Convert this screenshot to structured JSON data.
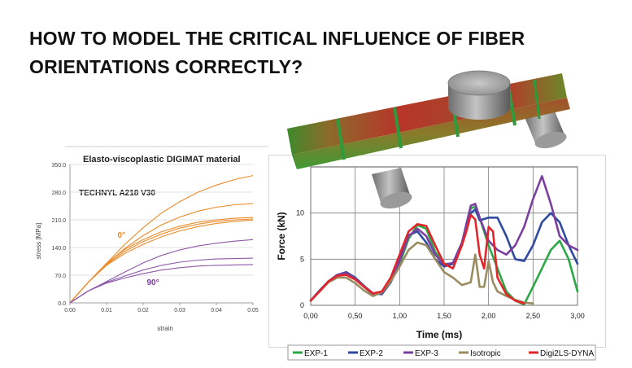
{
  "headline": {
    "line1": "HOW TO MODEL THE CRITICAL INFLUENCE OF FIBER",
    "line2": "ORIENTATIONS CORRECTLY?"
  },
  "chart_data": [
    {
      "type": "line",
      "title": "Elasto-viscoplastic DIGIMAT material",
      "subtitle": "TECHNYL A218 V30",
      "xlabel": "strain",
      "ylabel": "stress [MPa]",
      "xlim": [
        0.0,
        0.05
      ],
      "ylim": [
        0.0,
        350.0
      ],
      "x_ticks": [
        "0.00",
        "0.01",
        "0.02",
        "0.03",
        "0.04",
        "0.05"
      ],
      "y_ticks": [
        "0.0",
        "70.0",
        "140.0",
        "210.0",
        "280.0",
        "350.0"
      ],
      "grid": "horizontal",
      "annotations": [
        {
          "text": "0°",
          "x": 0.013,
          "y": 165,
          "color": "#ea8a2a"
        },
        {
          "text": "90°",
          "x": 0.021,
          "y": 45,
          "color": "#7a3d9a"
        }
      ],
      "series": [
        {
          "color": "#ea8a2a",
          "x": [
            0,
            0.005,
            0.01,
            0.015,
            0.02,
            0.025,
            0.03,
            0.035,
            0.04,
            0.045,
            0.05
          ],
          "y": [
            0,
            52,
            100,
            148,
            190,
            227,
            256,
            280,
            298,
            312,
            322
          ]
        },
        {
          "color": "#ea8a2a",
          "x": [
            0,
            0.005,
            0.01,
            0.015,
            0.02,
            0.025,
            0.03,
            0.035,
            0.04,
            0.045,
            0.05
          ],
          "y": [
            0,
            52,
            98,
            138,
            170,
            197,
            217,
            232,
            242,
            248,
            251
          ]
        },
        {
          "color": "#ea8a2a",
          "x": [
            0,
            0.005,
            0.01,
            0.015,
            0.02,
            0.025,
            0.03,
            0.035,
            0.04,
            0.045,
            0.05
          ],
          "y": [
            0,
            52,
            100,
            135,
            160,
            180,
            194,
            204,
            210,
            214,
            216
          ]
        },
        {
          "color": "#ea8a2a",
          "x": [
            0,
            0.005,
            0.01,
            0.015,
            0.02,
            0.025,
            0.03,
            0.035,
            0.04,
            0.045,
            0.05
          ],
          "y": [
            0,
            52,
            97,
            130,
            155,
            174,
            189,
            199,
            206,
            210,
            212
          ]
        },
        {
          "color": "#ea8a2a",
          "x": [
            0,
            0.005,
            0.01,
            0.015,
            0.02,
            0.025,
            0.03,
            0.035,
            0.04,
            0.045,
            0.05
          ],
          "y": [
            0,
            52,
            95,
            125,
            148,
            167,
            182,
            193,
            201,
            206,
            209
          ]
        },
        {
          "color": "#8d5aa8",
          "x": [
            0,
            0.005,
            0.01,
            0.015,
            0.02,
            0.025,
            0.03,
            0.035,
            0.04,
            0.045,
            0.05
          ],
          "y": [
            0,
            30,
            54,
            78,
            101,
            120,
            134,
            144,
            151,
            156,
            160
          ]
        },
        {
          "color": "#8d5aa8",
          "x": [
            0,
            0.005,
            0.01,
            0.015,
            0.02,
            0.025,
            0.03,
            0.035,
            0.04,
            0.045,
            0.05
          ],
          "y": [
            0,
            30,
            52,
            68,
            83,
            95,
            103,
            108,
            111,
            112,
            113
          ]
        },
        {
          "color": "#8d5aa8",
          "x": [
            0,
            0.005,
            0.01,
            0.015,
            0.02,
            0.025,
            0.03,
            0.035,
            0.04,
            0.045,
            0.05
          ],
          "y": [
            0,
            30,
            50,
            63,
            74,
            83,
            89,
            93,
            95,
            96,
            97
          ]
        }
      ]
    },
    {
      "type": "line",
      "xlabel": "Time (ms)",
      "ylabel": "Force (kN)",
      "xlim": [
        0.0,
        3.0
      ],
      "ylim": [
        0.0,
        15.0
      ],
      "x_ticks": [
        "0,00",
        "0,50",
        "1,00",
        "1,50",
        "2,00",
        "2,50",
        "3,00"
      ],
      "y_ticks": [
        "0",
        "5",
        "10"
      ],
      "grid": true,
      "legend": "bottom",
      "series": [
        {
          "name": "EXP-1",
          "color": "#2aa845",
          "x": [
            0,
            0.1,
            0.2,
            0.3,
            0.4,
            0.5,
            0.6,
            0.7,
            0.8,
            0.9,
            1.0,
            1.1,
            1.2,
            1.3,
            1.4,
            1.5,
            1.6,
            1.7,
            1.8,
            1.85,
            1.9,
            2.0,
            2.1,
            2.2,
            2.3,
            2.4,
            2.5,
            2.6,
            2.7,
            2.8,
            2.9,
            3.0
          ],
          "y": [
            0.5,
            1.6,
            2.6,
            3.3,
            3.4,
            2.9,
            2.0,
            1.2,
            1.3,
            2.5,
            4.5,
            7.2,
            8.7,
            8.3,
            5.8,
            4.5,
            4.5,
            6.5,
            10.5,
            10.7,
            9.5,
            6.5,
            4.0,
            1.5,
            0.5,
            0.1,
            2.0,
            4.0,
            6.0,
            7.0,
            5.0,
            1.5
          ]
        },
        {
          "name": "EXP-2",
          "color": "#2f4aa0",
          "x": [
            0,
            0.1,
            0.2,
            0.3,
            0.4,
            0.5,
            0.6,
            0.7,
            0.8,
            0.9,
            1.0,
            1.1,
            1.2,
            1.3,
            1.4,
            1.5,
            1.6,
            1.7,
            1.8,
            1.85,
            1.9,
            2.0,
            2.1,
            2.2,
            2.3,
            2.4,
            2.5,
            2.6,
            2.7,
            2.8,
            2.9,
            3.0
          ],
          "y": [
            0.5,
            1.6,
            2.6,
            3.3,
            3.6,
            3.0,
            2.1,
            1.3,
            1.2,
            2.5,
            5.0,
            7.6,
            8.0,
            6.8,
            5.0,
            4.2,
            4.5,
            6.5,
            10.0,
            10.4,
            9.2,
            9.5,
            9.5,
            7.5,
            5.0,
            4.8,
            6.5,
            9.0,
            10.0,
            9.0,
            6.5,
            4.5
          ]
        },
        {
          "name": "EXP-3",
          "color": "#7b3fa0",
          "x": [
            0,
            0.1,
            0.2,
            0.3,
            0.4,
            0.5,
            0.6,
            0.7,
            0.8,
            0.9,
            1.0,
            1.1,
            1.2,
            1.3,
            1.4,
            1.5,
            1.6,
            1.7,
            1.8,
            1.85,
            1.9,
            2.0,
            2.1,
            2.2,
            2.3,
            2.4,
            2.5,
            2.6,
            2.7,
            2.8,
            2.9,
            3.0
          ],
          "y": [
            0.5,
            1.6,
            2.6,
            3.3,
            3.5,
            2.9,
            2.0,
            1.2,
            1.3,
            2.6,
            4.8,
            7.5,
            8.3,
            7.5,
            5.5,
            4.4,
            4.6,
            6.8,
            10.8,
            11.0,
            9.5,
            7.0,
            6.0,
            5.5,
            6.5,
            8.5,
            11.5,
            14.0,
            11.0,
            7.5,
            6.5,
            6.0
          ]
        },
        {
          "name": "Isotropic",
          "color": "#9a8c60",
          "x": [
            0,
            0.1,
            0.2,
            0.3,
            0.4,
            0.5,
            0.6,
            0.7,
            0.8,
            0.9,
            1.0,
            1.1,
            1.2,
            1.3,
            1.4,
            1.5,
            1.6,
            1.7,
            1.8,
            1.85,
            1.9,
            1.95,
            2.0,
            2.05,
            2.1,
            2.2,
            2.3,
            2.4,
            2.5
          ],
          "y": [
            0.5,
            1.5,
            2.5,
            3.0,
            3.0,
            2.4,
            1.6,
            1.0,
            1.4,
            2.6,
            4.2,
            6.0,
            6.8,
            6.5,
            5.0,
            3.6,
            3.0,
            2.2,
            2.5,
            5.5,
            2.0,
            2.0,
            4.8,
            2.5,
            1.5,
            1.0,
            0.6,
            0.3,
            0.2
          ]
        },
        {
          "name": "Digi2LS-DYNA",
          "color": "#e0262a",
          "x": [
            0,
            0.1,
            0.2,
            0.3,
            0.4,
            0.5,
            0.6,
            0.7,
            0.8,
            0.9,
            1.0,
            1.1,
            1.2,
            1.3,
            1.4,
            1.5,
            1.6,
            1.7,
            1.75,
            1.8,
            1.85,
            1.9,
            1.95,
            2.0,
            2.05,
            2.1,
            2.2,
            2.3,
            2.4
          ],
          "y": [
            0.5,
            1.5,
            2.6,
            3.2,
            3.3,
            2.8,
            2.0,
            1.3,
            1.5,
            3.0,
            5.5,
            8.0,
            8.8,
            8.6,
            6.5,
            4.5,
            4.0,
            6.5,
            8.0,
            9.8,
            9.3,
            5.5,
            4.0,
            8.5,
            8.0,
            3.0,
            1.2,
            0.5,
            0.2
          ]
        }
      ]
    }
  ],
  "colors": {
    "orange": "#ea8a2a",
    "purple": "#8d5aa8"
  },
  "illustration": {
    "icon": "beam-bending-test-icon"
  }
}
